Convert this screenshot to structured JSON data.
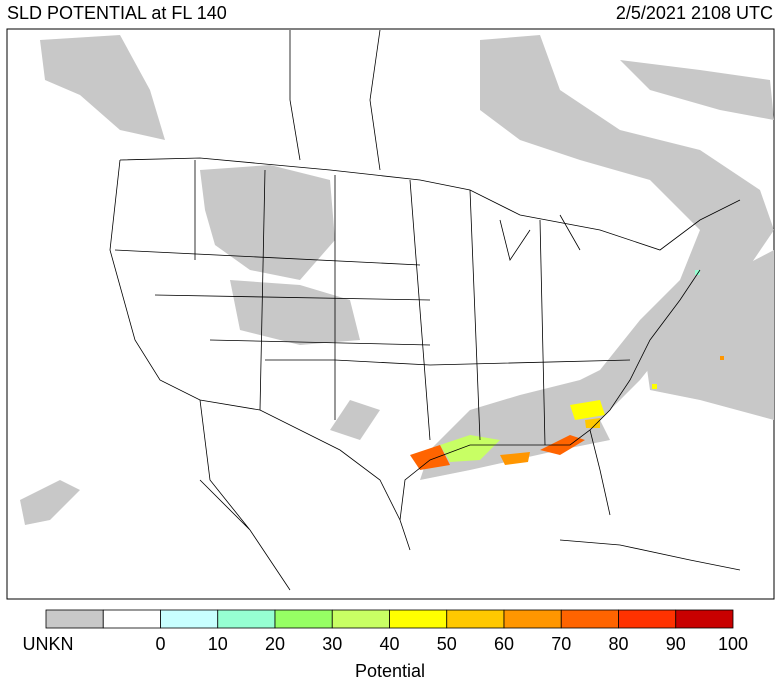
{
  "header": {
    "title": "SLD POTENTIAL at FL 140",
    "timestamp": "2/5/2021 2108 UTC"
  },
  "legend": {
    "title": "Potential",
    "colors": [
      "#c8c8c8",
      "#ffffff",
      "#c8ffff",
      "#96ffd2",
      "#96ff64",
      "#c8ff64",
      "#ffff00",
      "#ffc800",
      "#ff9600",
      "#ff6400",
      "#ff3200",
      "#c80000"
    ],
    "unknown_label": "UNKN",
    "labels": [
      "0",
      "10",
      "20",
      "30",
      "40",
      "50",
      "60",
      "70",
      "80",
      "90",
      "100"
    ]
  }
}
